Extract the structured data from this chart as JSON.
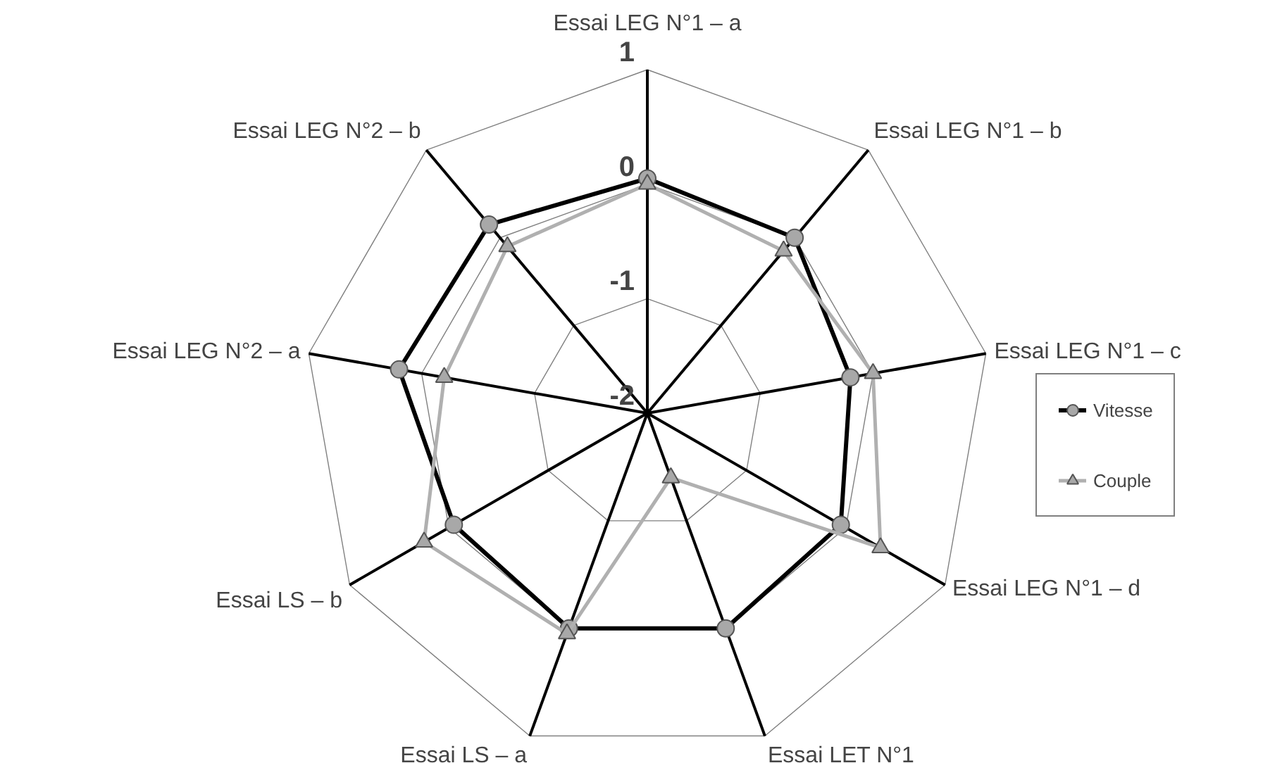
{
  "chart_data": {
    "type": "radar",
    "categories": [
      "Essai LEG N°1 – a",
      "Essai LEG N°1 – b",
      "Essai LEG N°1 – c",
      "Essai LEG N°1 – d",
      "Essai LET N°1",
      "Essai LS – a",
      "Essai LS – b",
      "Essai LEG N°2 – a",
      "Essai LEG N°2 – b"
    ],
    "series": [
      {
        "name": "Vitesse",
        "color": "#000000",
        "marker": "circle",
        "values": [
          0.05,
          0,
          -0.2,
          -0.05,
          0,
          0,
          -0.05,
          0.2,
          0.15
        ]
      },
      {
        "name": "Couple",
        "color": "#b0b0b0",
        "marker": "triangle",
        "values": [
          0,
          -0.15,
          0,
          0.35,
          -1.4,
          0.05,
          0.25,
          -0.2,
          -0.1
        ]
      }
    ],
    "ylim": [
      -2,
      1
    ],
    "yticks": [
      -2,
      -1,
      0,
      1
    ],
    "grid": true,
    "legend": "right"
  }
}
